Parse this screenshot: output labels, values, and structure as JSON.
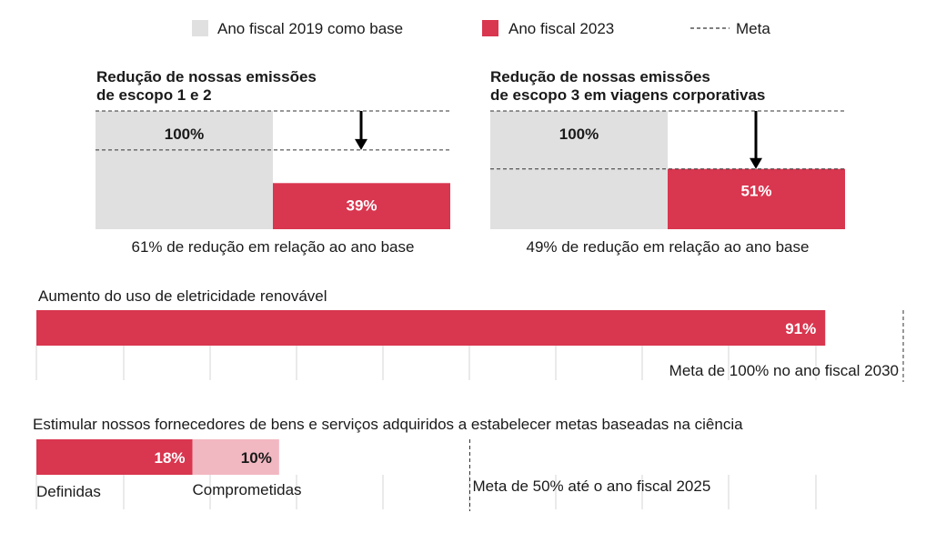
{
  "legend": {
    "base_label": "Ano fiscal 2019 como base",
    "current_label": "Ano fiscal 2023",
    "target_label": "Meta"
  },
  "colors": {
    "base": "#e0e0e0",
    "current": "#d9364f",
    "committed": "#f2b8c2",
    "grid": "#d6d6d6",
    "target_line": "#333333"
  },
  "chart_data": [
    {
      "type": "bar",
      "title_line1": "Redução de nossas emissões",
      "title_line2": "de escopo 1 e 2",
      "base_value": 100,
      "current_value": 39,
      "target_value": 67,
      "base_value_label": "100%",
      "current_value_label": "39%",
      "caption": "61% de redução em relação ao ano base"
    },
    {
      "type": "bar",
      "title_line1": "Redução de nossas emissões",
      "title_line2": "de escopo 3 em viagens corporativas",
      "base_value": 100,
      "current_value": 51,
      "target_value": 51,
      "base_value_label": "100%",
      "current_value_label": "51%",
      "caption": "49% de redução em relação ao ano base"
    },
    {
      "type": "bar",
      "title": "Aumento do uso de eletricidade renovável",
      "value": 91,
      "value_label": "91%",
      "target": 100,
      "target_label": "Meta de 100% no ano fiscal 2030",
      "xlim": [
        0,
        100
      ]
    },
    {
      "type": "bar",
      "title": "Estimular nossos fornecedores de bens e serviços adquiridos a estabelecer metas baseadas na ciência",
      "series": [
        {
          "name": "Definidas",
          "value": 18,
          "value_label": "18%"
        },
        {
          "name": "Comprometidas",
          "value": 10,
          "value_label": "10%"
        }
      ],
      "target": 50,
      "target_label": "Meta de 50% até o ano fiscal 2025",
      "xlim": [
        0,
        100
      ]
    }
  ]
}
